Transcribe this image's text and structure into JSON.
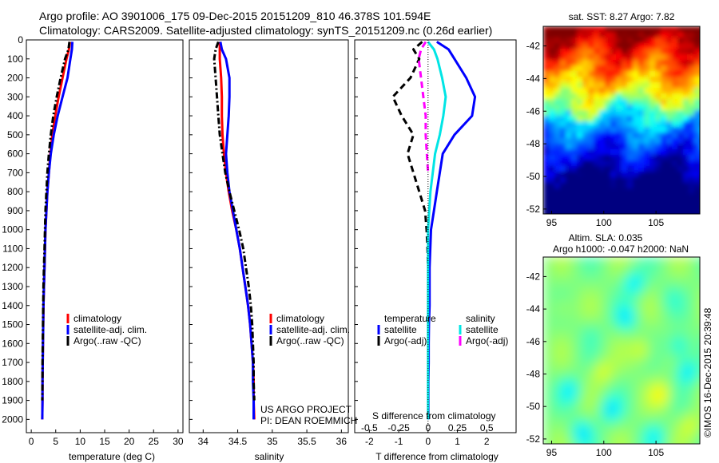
{
  "header": {
    "line1": "Argo profile: AO 3901006_175 09-Dec-2015 20151209_810 46.378S 101.594E",
    "line2": "Climatology: CARS2009. Satellite-adjusted climatology: synTS_20151209.nc (0.26d earlier)"
  },
  "colors": {
    "climatology": "#ff0000",
    "satellite": "#0000ff",
    "argo": "#000000",
    "satellite_s": "#00e5e5",
    "argo_s": "#ff00ff"
  },
  "chart_data": [
    {
      "id": "temperature",
      "type": "line",
      "xlabel": "temperature (deg C)",
      "xlim": [
        -1,
        31
      ],
      "xticks": [
        0,
        5,
        10,
        15,
        20,
        25,
        30
      ],
      "ylim": [
        2070,
        0
      ],
      "yticks": [
        0,
        100,
        200,
        300,
        400,
        500,
        600,
        700,
        800,
        900,
        1000,
        1100,
        1200,
        1300,
        1400,
        1500,
        1600,
        1700,
        1800,
        1900,
        2000
      ],
      "legend": [
        "climatology",
        "satellite-adj. clim.",
        "Argo(..raw -QC)"
      ],
      "series": [
        {
          "name": "climatology",
          "style": "solid",
          "color": "#ff0000",
          "x": [
            7.9,
            7.7,
            7.2,
            6.4,
            5.6,
            4.9,
            4.3,
            3.9,
            3.6,
            3.3,
            3.1,
            2.9,
            2.8,
            2.7,
            2.6,
            2.5,
            2.45,
            2.4,
            2.35,
            2.3,
            2.3,
            2.25
          ],
          "y": [
            10,
            50,
            100,
            200,
            300,
            400,
            500,
            600,
            700,
            800,
            900,
            1000,
            1100,
            1200,
            1300,
            1400,
            1500,
            1600,
            1700,
            1800,
            1900,
            2000
          ]
        },
        {
          "name": "satellite-adj. clim.",
          "style": "solid",
          "color": "#0000ff",
          "x": [
            8.4,
            8.3,
            8.0,
            7.4,
            6.4,
            5.4,
            4.6,
            4.0,
            3.6,
            3.3,
            3.1,
            2.9,
            2.8,
            2.7,
            2.6,
            2.5,
            2.45,
            2.4,
            2.35,
            2.3,
            2.3,
            2.25
          ],
          "y": [
            10,
            50,
            100,
            200,
            300,
            400,
            500,
            600,
            700,
            800,
            900,
            1000,
            1100,
            1200,
            1300,
            1400,
            1500,
            1600,
            1700,
            1800,
            1900,
            2000
          ]
        },
        {
          "name": "Argo(..raw -QC)",
          "style": "dashdot",
          "color": "#000000",
          "x": [
            7.8,
            7.6,
            6.9,
            6.0,
            5.2,
            4.5,
            4.0,
            3.6,
            3.3,
            3.1,
            2.9,
            2.8,
            2.7,
            2.6,
            2.5,
            2.45,
            2.4,
            2.35,
            2.3,
            2.3,
            2.25
          ],
          "y": [
            10,
            50,
            100,
            200,
            300,
            400,
            500,
            600,
            700,
            800,
            900,
            1000,
            1100,
            1200,
            1300,
            1400,
            1500,
            1600,
            1700,
            1800,
            1900
          ]
        }
      ]
    },
    {
      "id": "salinity",
      "type": "line",
      "xlabel": "salinity",
      "xlim": [
        33.8,
        36.1
      ],
      "xticks": [
        34,
        34.5,
        35,
        35.5,
        36
      ],
      "ylim": [
        2070,
        0
      ],
      "yticks": [
        0,
        100,
        200,
        300,
        400,
        500,
        600,
        700,
        800,
        900,
        1000,
        1100,
        1200,
        1300,
        1400,
        1500,
        1600,
        1700,
        1800,
        1900,
        2000
      ],
      "legend": [
        "climatology",
        "satellite-adj. clim.",
        "Argo(..raw -QC)"
      ],
      "credit": [
        "US ARGO PROJECT",
        "PI: DEAN ROEMMICH"
      ],
      "series": [
        {
          "name": "climatology",
          "style": "solid",
          "color": "#ff0000",
          "x": [
            34.24,
            34.24,
            34.24,
            34.26,
            34.27,
            34.27,
            34.28,
            34.3,
            34.33,
            34.37,
            34.42,
            34.48,
            34.53,
            34.57,
            34.61,
            34.65,
            34.68,
            34.7,
            34.72,
            34.73,
            34.73,
            34.74
          ],
          "y": [
            10,
            50,
            100,
            200,
            300,
            400,
            500,
            600,
            700,
            800,
            900,
            1000,
            1100,
            1200,
            1300,
            1400,
            1500,
            1600,
            1700,
            1800,
            1900,
            2000
          ]
        },
        {
          "name": "satellite-adj. clim.",
          "style": "solid",
          "color": "#0000ff",
          "x": [
            34.25,
            34.27,
            34.33,
            34.38,
            34.38,
            34.37,
            34.35,
            34.33,
            34.35,
            34.38,
            34.43,
            34.48,
            34.53,
            34.57,
            34.61,
            34.65,
            34.68,
            34.7,
            34.72,
            34.72,
            34.73,
            34.73
          ],
          "y": [
            10,
            50,
            100,
            200,
            300,
            400,
            500,
            600,
            700,
            800,
            900,
            1000,
            1100,
            1200,
            1300,
            1400,
            1500,
            1600,
            1700,
            1800,
            1900,
            2000
          ]
        },
        {
          "name": "Argo(..raw -QC)",
          "style": "dashdot",
          "color": "#000000",
          "x": [
            34.22,
            34.18,
            34.16,
            34.18,
            34.2,
            34.22,
            34.24,
            34.28,
            34.32,
            34.38,
            34.45,
            34.52,
            34.58,
            34.62,
            34.66,
            34.69,
            34.71,
            34.72,
            34.73,
            34.73,
            34.74
          ],
          "y": [
            10,
            50,
            100,
            200,
            300,
            400,
            500,
            600,
            700,
            800,
            900,
            1000,
            1100,
            1200,
            1300,
            1400,
            1500,
            1600,
            1700,
            1800,
            1900
          ]
        }
      ]
    },
    {
      "id": "difference",
      "type": "line",
      "xlabel": "T difference from climatology",
      "top_label": "S difference from climatology",
      "xlim": [
        -2.5,
        3
      ],
      "xticks": [
        -2,
        -1,
        0,
        1,
        2
      ],
      "top_ticks_values": [
        -0.5,
        -0.25,
        0,
        0.25,
        0.5
      ],
      "top_ticks_labels": [
        "-0.5",
        "-0.25",
        "0",
        "0.25",
        "0.5"
      ],
      "ylim": [
        2070,
        0
      ],
      "yticks": [
        0,
        100,
        200,
        300,
        400,
        500,
        600,
        700,
        800,
        900,
        1000,
        1100,
        1200,
        1300,
        1400,
        1500,
        1600,
        1700,
        1800,
        1900,
        2000
      ],
      "legend": {
        "temperature_title": "temperature",
        "salinity_title": "salinity",
        "items": [
          "satellite",
          "Argo(-adj)",
          "satellite",
          "Argo(-adj)"
        ]
      },
      "series": [
        {
          "name": "temperature satellite",
          "style": "solid",
          "color": "#0000ff",
          "x": [
            0.3,
            0.7,
            0.9,
            1.3,
            1.6,
            1.5,
            0.9,
            0.5,
            0.4,
            0.3,
            0.2,
            0.1,
            0.05,
            0.05,
            0.03,
            0.02,
            0.02,
            0.01,
            0.01,
            0.01
          ],
          "y": [
            10,
            50,
            100,
            200,
            300,
            400,
            500,
            600,
            700,
            800,
            900,
            1000,
            1200,
            1400,
            1500,
            1600,
            1700,
            1800,
            1900,
            2000
          ]
        },
        {
          "name": "temperature Argo(-adj)",
          "style": "dashed",
          "color": "#000000",
          "x": [
            -0.2,
            -0.5,
            -0.3,
            -0.6,
            -1.2,
            -0.9,
            -0.5,
            -0.7,
            -0.5,
            -0.3,
            -0.1,
            -0.05,
            -0.02,
            0.0
          ],
          "y": [
            10,
            50,
            100,
            200,
            300,
            400,
            500,
            600,
            700,
            800,
            900,
            1000,
            1100,
            1200
          ]
        },
        {
          "name": "salinity satellite",
          "style": "solid",
          "color": "#00e5e5",
          "x": [
            0.0,
            0.05,
            0.08,
            0.12,
            0.15,
            0.13,
            0.1,
            0.06,
            0.04,
            0.02,
            0.01,
            0.0,
            0.0,
            0.0,
            0.0,
            0.0,
            0.0,
            0.0,
            0.0,
            0.0
          ],
          "y": [
            10,
            50,
            100,
            200,
            300,
            400,
            500,
            600,
            700,
            800,
            900,
            1000,
            1200,
            1400,
            1500,
            1600,
            1700,
            1800,
            1900,
            2000
          ]
        },
        {
          "name": "salinity Argo(-adj)",
          "style": "dashed",
          "color": "#ff00ff",
          "x": [
            -0.02,
            -0.06,
            -0.08,
            -0.06,
            -0.04,
            -0.02,
            -0.02,
            -0.01,
            0.0
          ],
          "y": [
            10,
            50,
            100,
            200,
            300,
            400,
            500,
            600,
            700
          ]
        }
      ]
    },
    {
      "id": "sst_map",
      "type": "heatmap",
      "title": "sat. SST: 8.27  Argo: 7.82",
      "xticks": [
        95,
        100,
        105
      ],
      "yticks": [
        -42,
        -44,
        -46,
        -48,
        -50,
        -52
      ],
      "xlim": [
        94.2,
        109.2
      ],
      "ylim": [
        -52.3,
        -40.8
      ]
    },
    {
      "id": "sla_map",
      "type": "heatmap",
      "title_line1": "Altim. SLA: 0.035",
      "title_line2": "Argo h1000: -0.047 h2000: NaN",
      "xticks": [
        95,
        100,
        105
      ],
      "yticks": [
        -42,
        -44,
        -46,
        -48,
        -50,
        -52
      ],
      "xlim": [
        94.2,
        109.2
      ],
      "ylim": [
        -52.3,
        -40.8
      ]
    }
  ],
  "footer": {
    "stamp": "©IMOS 16-Dec-2015 20:39:48"
  }
}
